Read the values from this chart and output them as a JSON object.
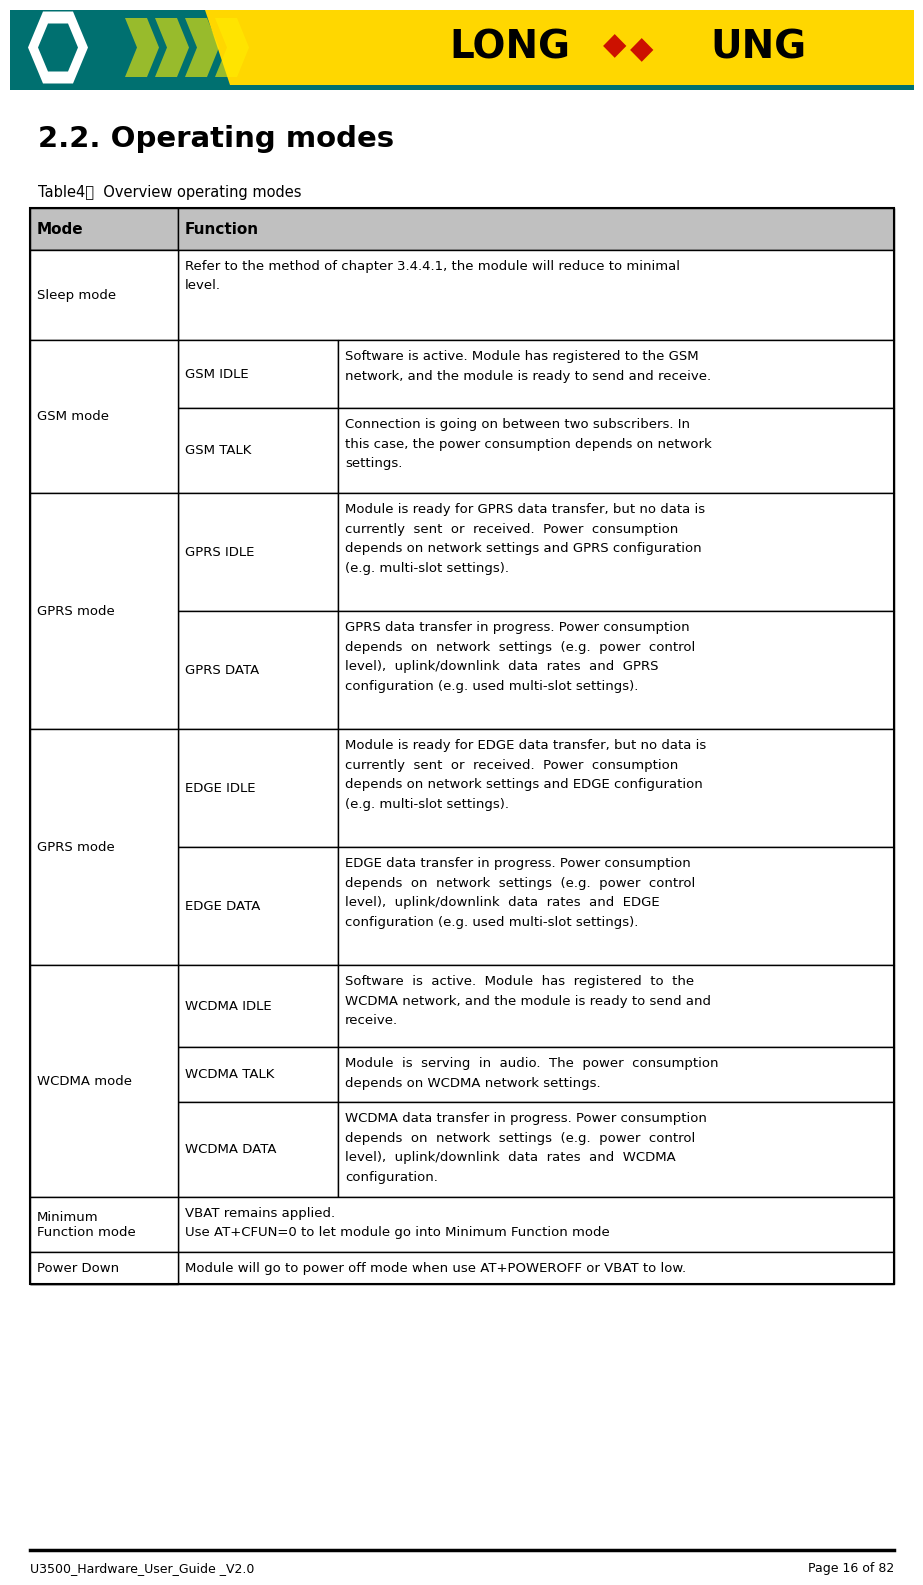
{
  "title": "2.2. Operating modes",
  "table_caption": "Table4：  Overview operating modes",
  "header_row": [
    "Mode",
    "Function"
  ],
  "header_bg": "#C0C0C0",
  "rows": [
    {
      "mode_label": "Sleep mode",
      "mode_span": 1,
      "sub_mode": "",
      "has_sub": false,
      "function_lines": [
        "Refer to the method of chapter 3.4.4.1, the module will reduce to minimal",
        "level."
      ]
    },
    {
      "mode_label": "GSM mode",
      "mode_span": 2,
      "sub_mode": "GSM IDLE",
      "has_sub": true,
      "function_lines": [
        "Software is active. Module has registered to the GSM",
        "network, and the module is ready to send and receive."
      ]
    },
    {
      "mode_label": "",
      "mode_span": 0,
      "sub_mode": "GSM TALK",
      "has_sub": true,
      "function_lines": [
        "Connection is going on between two subscribers. In",
        "this case, the power consumption depends on network",
        "settings."
      ]
    },
    {
      "mode_label": "GPRS mode",
      "mode_span": 2,
      "sub_mode": "GPRS IDLE",
      "has_sub": true,
      "function_lines": [
        "Module is ready for GPRS data transfer, but no data is",
        "currently  sent  or  received.  Power  consumption",
        "depends on network settings and GPRS configuration",
        "(e.g. multi-slot settings)."
      ]
    },
    {
      "mode_label": "",
      "mode_span": 0,
      "sub_mode": "GPRS DATA",
      "has_sub": true,
      "function_lines": [
        "GPRS data transfer in progress. Power consumption",
        "depends  on  network  settings  (e.g.  power  control",
        "level),  uplink/downlink  data  rates  and  GPRS",
        "configuration (e.g. used multi-slot settings)."
      ]
    },
    {
      "mode_label": "GPRS mode",
      "mode_span": 2,
      "sub_mode": "EDGE IDLE",
      "has_sub": true,
      "function_lines": [
        "Module is ready for EDGE data transfer, but no data is",
        "currently  sent  or  received.  Power  consumption",
        "depends on network settings and EDGE configuration",
        "(e.g. multi-slot settings)."
      ]
    },
    {
      "mode_label": "",
      "mode_span": 0,
      "sub_mode": "EDGE DATA",
      "has_sub": true,
      "function_lines": [
        "EDGE data transfer in progress. Power consumption",
        "depends  on  network  settings  (e.g.  power  control",
        "level),  uplink/downlink  data  rates  and  EDGE",
        "configuration (e.g. used multi-slot settings)."
      ]
    },
    {
      "mode_label": "WCDMA mode",
      "mode_span": 3,
      "sub_mode": "WCDMA IDLE",
      "has_sub": true,
      "function_lines": [
        "Software  is  active.  Module  has  registered  to  the",
        "WCDMA network, and the module is ready to send and",
        "receive."
      ]
    },
    {
      "mode_label": "",
      "mode_span": 0,
      "sub_mode": "WCDMA TALK",
      "has_sub": true,
      "function_lines": [
        "Module  is  serving  in  audio.  The  power  consumption",
        "depends on WCDMA network settings."
      ]
    },
    {
      "mode_label": "",
      "mode_span": 0,
      "sub_mode": "WCDMA DATA",
      "has_sub": true,
      "function_lines": [
        "WCDMA data transfer in progress. Power consumption",
        "depends  on  network  settings  (e.g.  power  control",
        "level),  uplink/downlink  data  rates  and  WCDMA",
        "configuration."
      ]
    },
    {
      "mode_label": "Minimum\nFunction mode",
      "mode_span": 1,
      "sub_mode": "",
      "has_sub": false,
      "function_lines": [
        "VBAT remains applied.",
        "Use AT+CFUN=0 to let module go into Minimum Function mode"
      ]
    },
    {
      "mode_label": "Power Down",
      "mode_span": 1,
      "sub_mode": "",
      "has_sub": false,
      "function_lines": [
        "Module will go to power off mode when use AT+POWEROFF or VBAT to low."
      ]
    }
  ],
  "footer_left": "U3500_Hardware_User_Guide _V2.0",
  "footer_right": "Page 16 of 82",
  "bg_color": "#FFFFFF",
  "border_color": "#000000",
  "text_color": "#000000",
  "header_text_color": "#000000",
  "teal_color": "#007070",
  "yellow_color": "#FFD700",
  "red_color": "#CC1100",
  "watermark_text": "Longsung",
  "watermark_color": "#AAAAAA"
}
